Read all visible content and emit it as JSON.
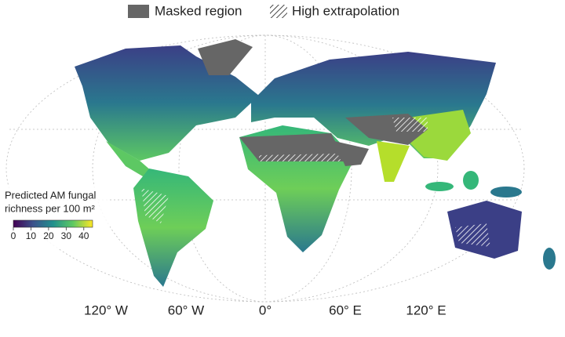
{
  "legend": {
    "masked": "Masked region",
    "extrapolation": "High extrapolation"
  },
  "colorbar": {
    "title": [
      "Predicted AM fungal",
      "richness per 100 m²"
    ],
    "lim": [
      0,
      45
    ],
    "ticks": [
      0,
      10,
      20,
      30,
      40
    ]
  },
  "longitude_labels": [
    "120° W",
    "60° W",
    "0°",
    "60° E",
    "120° E"
  ]
}
